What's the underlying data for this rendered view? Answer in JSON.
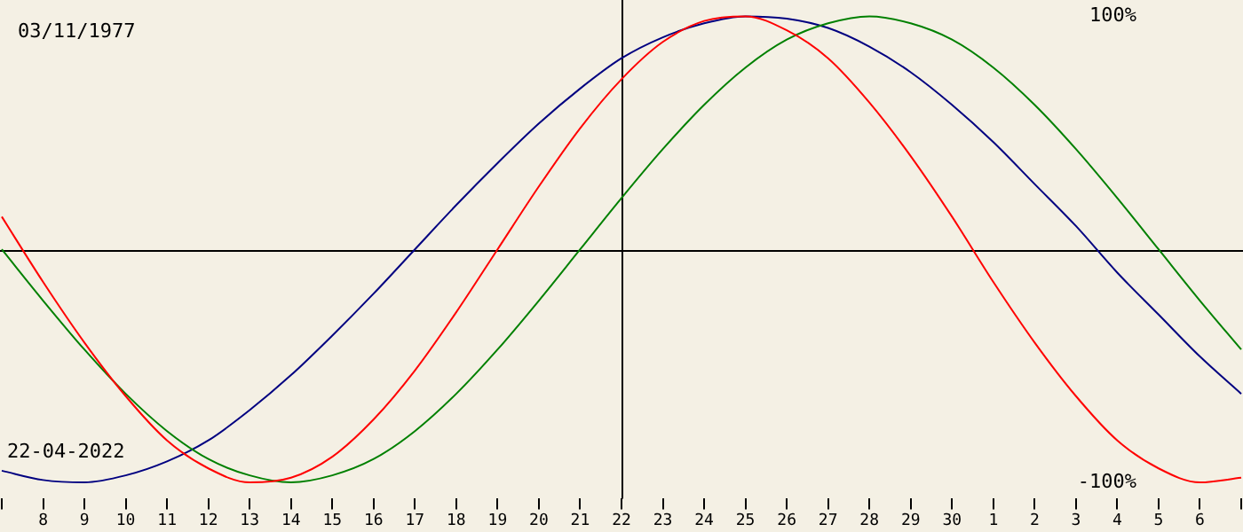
{
  "chart_data": {
    "type": "line",
    "categories": [
      null,
      "8",
      "9",
      "10",
      "11",
      "12",
      "13",
      "14",
      "15",
      "16",
      "17",
      "18",
      "19",
      "20",
      "21",
      "22",
      "23",
      "24",
      "25",
      "26",
      "27",
      "28",
      "29",
      "30",
      "1",
      "2",
      "3",
      "4",
      "5",
      "6",
      null
    ],
    "ylim": [
      -107,
      107
    ],
    "yticks": [
      {
        "value": 100,
        "label": "100%"
      },
      {
        "value": -100,
        "label": "-100%"
      }
    ],
    "series": [
      {
        "color": "#ff0000",
        "values": [
          14,
          -14,
          -40,
          -63,
          -82,
          -94,
          -100,
          -98,
          -89,
          -73,
          -52,
          -27,
          0,
          27,
          52,
          73,
          89,
          98,
          100,
          94,
          82,
          63,
          40,
          14,
          -14,
          -40,
          -63,
          -82,
          -94,
          -100,
          -98
        ]
      },
      {
        "color": "#008000",
        "values": [
          0,
          -22,
          -43,
          -62,
          -78,
          -90,
          -97,
          -100,
          -97,
          -90,
          -78,
          -62,
          -43,
          -22,
          0,
          22,
          43,
          62,
          78,
          90,
          97,
          100,
          97,
          90,
          78,
          62,
          43,
          22,
          0,
          -22,
          -43
        ]
      },
      {
        "color": "#000080",
        "values": [
          -95,
          -99,
          -100,
          -97,
          -91,
          -82,
          -69,
          -54,
          -37,
          -19,
          0,
          19,
          37,
          54,
          69,
          82,
          91,
          97,
          100,
          99,
          95,
          87,
          76,
          62,
          46,
          28,
          10,
          -10,
          -28,
          -46,
          -62
        ]
      }
    ],
    "ref_lines": [
      {
        "axis": "x",
        "value": "22",
        "color": "#000000"
      },
      {
        "axis": "y",
        "value": 0,
        "color": "#000000"
      }
    ],
    "annotations": [
      "03/11/1977",
      "22-04-2022"
    ],
    "grid": false,
    "legend": false,
    "marker": "none",
    "line_style": "solid"
  }
}
